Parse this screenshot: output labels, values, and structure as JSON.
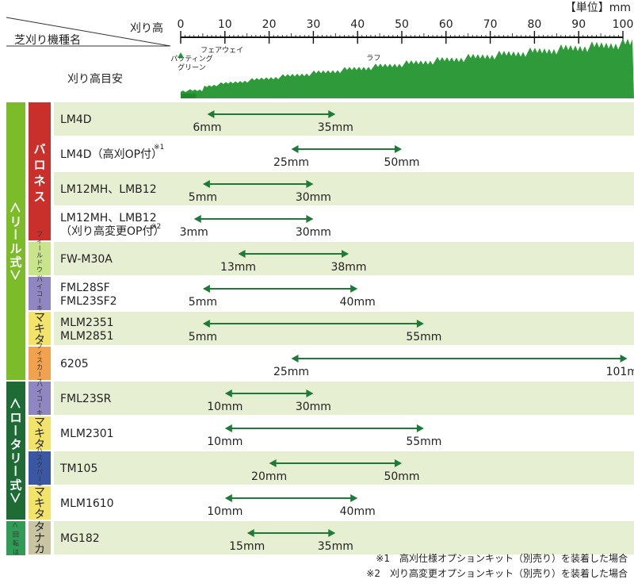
{
  "chart_data": {
    "type": "range",
    "unit_label": "【単位】mm",
    "header": {
      "height_label": "刈り高",
      "model_label": "芝刈り機種名",
      "guide_label": "刈り高目安"
    },
    "xlim": [
      0,
      100
    ],
    "ticks": [
      "0",
      "10",
      "20",
      "30",
      "40",
      "50",
      "60",
      "70",
      "80",
      "90",
      "100"
    ],
    "zones": {
      "putting_green": "パッティング\nグリーン",
      "fairway": "フェアウェイ",
      "rough": "ラフ"
    },
    "colors": {
      "arrow": "#1f7a3a",
      "row_shade": "#e6efd2",
      "reel": "#7cbc2b",
      "rotary": "#1f6b35",
      "scissors": "#2e9c55",
      "baroness": "#c9302c",
      "fieldwood": "#c9e58c",
      "haikoki": "#8f86c2",
      "makita": "#f2e36b",
      "fiskars": "#f2a14e",
      "husqvarna": "#3a57a3",
      "tanaka": "#c9c5a3"
    },
    "types": [
      {
        "label": "＜リール式＞",
        "rows": [
          0,
          7
        ],
        "color": "reel"
      },
      {
        "label": "＜ロータリー式＞",
        "rows": [
          8,
          11
        ],
        "color": "rotary"
      },
      {
        "label": "＜回転はさみ式＞",
        "rows": [
          12,
          13
        ],
        "color": "scissors"
      }
    ],
    "brands": [
      {
        "label": "バロネス",
        "rows": [
          0,
          3
        ],
        "color": "baroness",
        "size": "big"
      },
      {
        "label": "フィールドウッズ",
        "rows": [
          4,
          4
        ],
        "color": "fieldwood",
        "size": "small"
      },
      {
        "label": "ハイコーキ",
        "rows": [
          5,
          5
        ],
        "color": "haikoki",
        "size": "small"
      },
      {
        "label": "マキタ",
        "rows": [
          6,
          6
        ],
        "color": "makita",
        "size": "mid"
      },
      {
        "label": "フィスカース",
        "rows": [
          7,
          7
        ],
        "color": "fiskars",
        "size": "small"
      },
      {
        "label": "ハイコーキ",
        "rows": [
          8,
          8
        ],
        "color": "haikoki",
        "size": "small"
      },
      {
        "label": "マキタ",
        "rows": [
          9,
          9
        ],
        "color": "makita",
        "size": "mid"
      },
      {
        "label": "ハスクバーナ",
        "rows": [
          10,
          10
        ],
        "color": "husqvarna",
        "size": "small"
      },
      {
        "label": "マキタ",
        "rows": [
          11,
          11
        ],
        "color": "makita",
        "size": "mid"
      },
      {
        "label": "タナカ",
        "rows": [
          12,
          12
        ],
        "color": "tanaka",
        "size": "mid"
      }
    ],
    "models": [
      {
        "name": "LM4D",
        "note": "",
        "min": 6,
        "max": 35,
        "min_label": "6mm",
        "max_label": "35mm"
      },
      {
        "name": "LM4D（高刈OP付）",
        "note": "※1",
        "min": 25,
        "max": 50,
        "min_label": "25mm",
        "max_label": "50mm"
      },
      {
        "name": "LM12MH、LMB12",
        "note": "",
        "min": 5,
        "max": 30,
        "min_label": "5mm",
        "max_label": "30mm"
      },
      {
        "name": "LM12MH、LMB12\n（刈り高変更OP付）",
        "note": "※2",
        "min": 3,
        "max": 30,
        "min_label": "3mm",
        "max_label": "30mm"
      },
      {
        "name": "FW-M30A",
        "note": "",
        "min": 13,
        "max": 38,
        "min_label": "13mm",
        "max_label": "38mm"
      },
      {
        "name": "FML28SF\nFML23SF2",
        "note": "",
        "min": 5,
        "max": 40,
        "min_label": "5mm",
        "max_label": "40mm"
      },
      {
        "name": "MLM2351\nMLM2851",
        "note": "",
        "min": 5,
        "max": 55,
        "min_label": "5mm",
        "max_label": "55mm"
      },
      {
        "name": "6205",
        "note": "",
        "min": 25,
        "max": 101,
        "min_label": "25mm",
        "max_label": "101mm"
      },
      {
        "name": "FML23SR",
        "note": "",
        "min": 10,
        "max": 30,
        "min_label": "10mm",
        "max_label": "30mm"
      },
      {
        "name": "MLM2301",
        "note": "",
        "min": 10,
        "max": 55,
        "min_label": "10mm",
        "max_label": "55mm"
      },
      {
        "name": "TM105",
        "note": "",
        "min": 20,
        "max": 50,
        "min_label": "20mm",
        "max_label": "50mm"
      },
      {
        "name": "MLM1610",
        "note": "",
        "min": 10,
        "max": 40,
        "min_label": "10mm",
        "max_label": "40mm"
      },
      {
        "name": "MG182",
        "note": "",
        "min": 15,
        "max": 35,
        "min_label": "15mm",
        "max_label": "35mm"
      }
    ]
  },
  "footnotes": [
    "※1　高刈仕様オプションキット（別売り）を装着した場合",
    "※2　刈り高変更オプションキット（別売り）を装着した場合"
  ]
}
